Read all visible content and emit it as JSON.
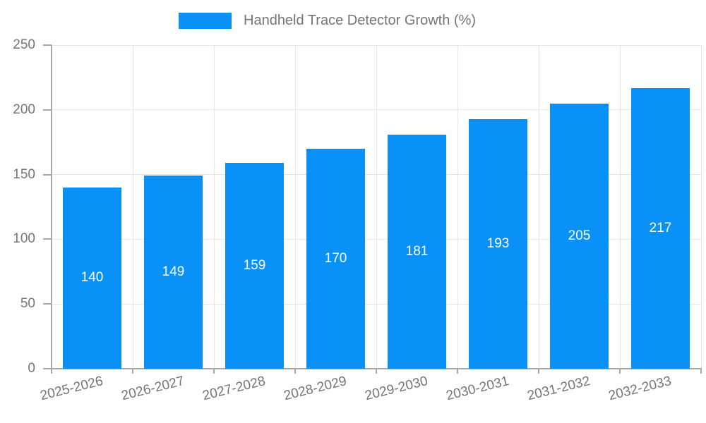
{
  "legend": {
    "label": "Handheld Trace Detector Growth (%)"
  },
  "chart_data": {
    "type": "bar",
    "title": "",
    "series_name": "Handheld Trace Detector Growth (%)",
    "categories": [
      "2025-2026",
      "2026-2027",
      "2027-2028",
      "2028-2029",
      "2029-2030",
      "2030-2031",
      "2031-2032",
      "2032-2033"
    ],
    "values": [
      140,
      149,
      159,
      170,
      181,
      193,
      205,
      217
    ],
    "xlabel": "",
    "ylabel": "",
    "ylim": [
      0,
      250
    ],
    "yticks": [
      0,
      50,
      100,
      150,
      200,
      250
    ],
    "grid": true,
    "legend_position": "top",
    "value_labels": "inside-center",
    "colors": {
      "bar": "#0a91f7",
      "grid": "#e6e6e6",
      "axis": "#a8a8a8",
      "tick_text": "#757575",
      "value_text": "#ffffff"
    }
  }
}
